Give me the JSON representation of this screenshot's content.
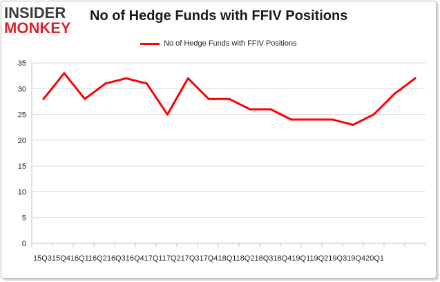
{
  "logo": {
    "line1": "INSIDER",
    "line2": "MONKEY"
  },
  "chart_data": {
    "type": "line",
    "title": "No of Hedge Funds with FFIV Positions",
    "xlabel": "",
    "ylabel": "",
    "categories": [
      "2015Q3",
      "2015Q4",
      "2016Q1",
      "2016Q2",
      "2016Q3",
      "2016Q4",
      "2017Q1",
      "2017Q2",
      "2017Q3",
      "2017Q4",
      "2018Q1",
      "2018Q2",
      "2018Q3",
      "2018Q4",
      "2019Q1",
      "2019Q2",
      "2019Q3",
      "2019Q4",
      "2020Q1"
    ],
    "x_tick_text": "15Q315Q416Q116Q216Q316Q417Q117Q217Q317Q418Q118Q218Q318Q419Q119Q219Q319Q420Q1",
    "series": [
      {
        "name": "No of Hedge Funds with FFIV Positions",
        "color": "#ff0000",
        "values": [
          28,
          33,
          28,
          31,
          32,
          31,
          25,
          32,
          28,
          28,
          26,
          26,
          24,
          24,
          24,
          23,
          25,
          29,
          32
        ]
      }
    ],
    "ylim": [
      0,
      35
    ],
    "yticks": [
      0,
      5,
      10,
      15,
      20,
      25,
      30,
      35
    ],
    "grid": true,
    "legend_position": "top-center"
  }
}
